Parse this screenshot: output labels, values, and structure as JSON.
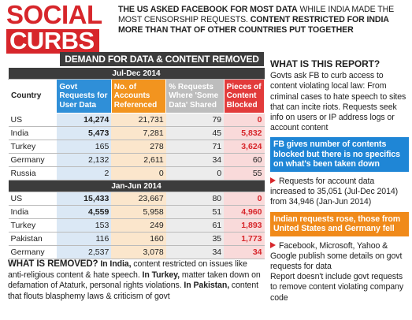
{
  "header": {
    "title_line1": "SOCIAL",
    "title_line2": "CURBS",
    "intro": [
      "THE US ASKED FACEBOOK FOR MOST DATA",
      " WHILE INDIA MADE THE MOST CENSORSHIP REQUESTS. ",
      "CONTENT RESTRICTED FOR INDIA MORE THAN THAT OF OTHER COUNTRIES PUT TOGETHER"
    ]
  },
  "table": {
    "title": "DEMAND FOR DATA & CONTENT REMOVED",
    "columns": [
      "Country",
      "Govt Requests for User Data",
      "No. of Accounts Referenced",
      "% Requests Where 'Some Data' Shared",
      "Pieces of Content Blocked"
    ],
    "sections": [
      {
        "period": "Jul-Dec 2014",
        "rows": [
          [
            "US",
            "14,274",
            "21,731",
            "79",
            "0"
          ],
          [
            "India",
            "5,473",
            "7,281",
            "45",
            "5,832"
          ],
          [
            "Turkey",
            "165",
            "278",
            "71",
            "3,624"
          ],
          [
            "Germany",
            "2,132",
            "2,611",
            "34",
            "60"
          ],
          [
            "Russia",
            "2",
            "0",
            "0",
            "55"
          ]
        ]
      },
      {
        "period": "Jan-Jun 2014",
        "rows": [
          [
            "US",
            "15,433",
            "23,667",
            "80",
            "0"
          ],
          [
            "India",
            "4,559",
            "5,958",
            "51",
            "4,960"
          ],
          [
            "Turkey",
            "153",
            "249",
            "61",
            "1,893"
          ],
          [
            "Pakistan",
            "116",
            "160",
            "35",
            "1,773"
          ],
          [
            "Germany",
            "2,537",
            "3,078",
            "34",
            "34"
          ]
        ]
      }
    ]
  },
  "removed": {
    "title": "WHAT IS REMOVED?",
    "items": [
      {
        "lead": "In India,",
        "text": " content restricted on issues like anti-religious content & hate speech. "
      },
      {
        "lead": "In Turkey,",
        "text": " matter taken down on defamation of Ataturk, personal rights violations. "
      },
      {
        "lead": "In Pakistan,",
        "text": " content that flouts blasphemy laws & criticism of govt"
      }
    ]
  },
  "report": {
    "title": "WHAT IS THIS REPORT?",
    "text": "Govts ask FB to curb access to content violating local law: From criminal cases to hate speech to sites that can incite riots. Requests seek info on users or IP address logs or account content",
    "highlight1": "FB gives number of contents blocked but there is no specifics on what's been taken down",
    "point1": "Requests for account data increased to 35,051 (Jul-Dec 2014) from 34,946 (Jan-Jun 2014)",
    "highlight2": "Indian requests rose, those from United States and Germany fell",
    "point2": "Facebook, Microsoft, Yahoo & Google publish some details on govt requests for data",
    "point3": "Report doesn't include govt requests to remove content violating company code"
  }
}
